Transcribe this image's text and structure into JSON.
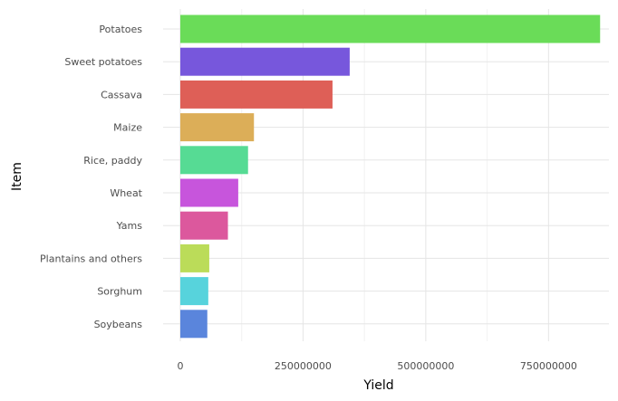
{
  "chart_data": {
    "type": "bar",
    "orientation": "horizontal",
    "xlabel": "Yield",
    "ylabel": "Item",
    "xlim": [
      -35000000,
      873000000
    ],
    "x_ticks": [
      0,
      250000000,
      500000000,
      750000000
    ],
    "x_tick_labels": [
      "0",
      "250000000",
      "500000000",
      "750000000"
    ],
    "grid": true,
    "legend": "none",
    "categories": [
      "Potatoes",
      "Sweet potatoes",
      "Cassava",
      "Maize",
      "Rice, paddy",
      "Wheat",
      "Yams",
      "Plantains and others",
      "Sorghum",
      "Soybeans"
    ],
    "values": [
      855000000,
      345000000,
      310000000,
      150000000,
      138000000,
      118000000,
      97000000,
      59000000,
      57000000,
      55000000
    ],
    "colors": [
      "#6adc58",
      "#7757dc",
      "#de5f57",
      "#dcae58",
      "#56db94",
      "#c755dc",
      "#dc589d",
      "#bbdc59",
      "#57d3dc",
      "#5a85dc"
    ]
  }
}
